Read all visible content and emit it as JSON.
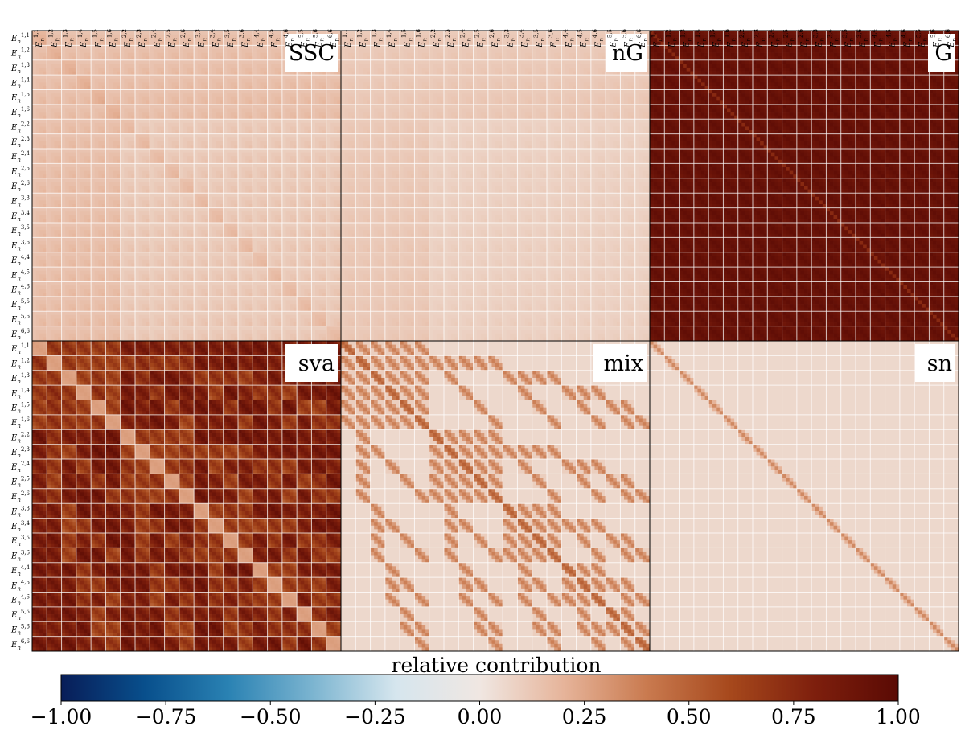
{
  "chart_data": {
    "type": "heatmap",
    "layout": {
      "rows": 2,
      "cols": 3
    },
    "tracers": [
      "E_n^{1,1}",
      "E_n^{1,2}",
      "E_n^{1,3}",
      "E_n^{1,4}",
      "E_n^{1,5}",
      "E_n^{1,6}",
      "E_n^{2,2}",
      "E_n^{2,3}",
      "E_n^{2,4}",
      "E_n^{2,5}",
      "E_n^{2,6}",
      "E_n^{3,3}",
      "E_n^{3,4}",
      "E_n^{3,5}",
      "E_n^{3,6}",
      "E_n^{4,4}",
      "E_n^{4,5}",
      "E_n^{4,6}",
      "E_n^{5,5}",
      "E_n^{5,6}",
      "E_n^{6,6}"
    ],
    "tick_labels": [
      {
        "base": "E",
        "sub": "n",
        "sup": "1,1"
      },
      {
        "base": "E",
        "sub": "n",
        "sup": "1,2"
      },
      {
        "base": "E",
        "sub": "n",
        "sup": "1,3"
      },
      {
        "base": "E",
        "sub": "n",
        "sup": "1,4"
      },
      {
        "base": "E",
        "sub": "n",
        "sup": "1,5"
      },
      {
        "base": "E",
        "sub": "n",
        "sup": "1,6"
      },
      {
        "base": "E",
        "sub": "n",
        "sup": "2,2"
      },
      {
        "base": "E",
        "sub": "n",
        "sup": "2,3"
      },
      {
        "base": "E",
        "sub": "n",
        "sup": "2,4"
      },
      {
        "base": "E",
        "sub": "n",
        "sup": "2,5"
      },
      {
        "base": "E",
        "sub": "n",
        "sup": "2,6"
      },
      {
        "base": "E",
        "sub": "n",
        "sup": "3,3"
      },
      {
        "base": "E",
        "sub": "n",
        "sup": "3,4"
      },
      {
        "base": "E",
        "sub": "n",
        "sup": "3,5"
      },
      {
        "base": "E",
        "sub": "n",
        "sup": "3,6"
      },
      {
        "base": "E",
        "sub": "n",
        "sup": "4,4"
      },
      {
        "base": "E",
        "sub": "n",
        "sup": "4,5"
      },
      {
        "base": "E",
        "sub": "n",
        "sup": "4,6"
      },
      {
        "base": "E",
        "sub": "n",
        "sup": "5,5"
      },
      {
        "base": "E",
        "sub": "n",
        "sup": "5,6"
      },
      {
        "base": "E",
        "sub": "n",
        "sup": "6,6"
      }
    ],
    "bins_per_tracer": 4,
    "panels": [
      {
        "name": "SSC",
        "row": 0,
        "col": 0,
        "pattern": "ssc",
        "typical_value": 0.16,
        "show_xticks": true,
        "show_yticks": true
      },
      {
        "name": "nG",
        "row": 0,
        "col": 1,
        "pattern": "ng",
        "typical_value": 0.12,
        "show_xticks": true,
        "show_yticks": false
      },
      {
        "name": "G",
        "row": 0,
        "col": 2,
        "pattern": "g",
        "typical_value": 0.97,
        "show_xticks": true,
        "show_yticks": false
      },
      {
        "name": "sva",
        "row": 1,
        "col": 0,
        "pattern": "sva",
        "typical_value": 0.75,
        "show_xticks": false,
        "show_yticks": true
      },
      {
        "name": "mix",
        "row": 1,
        "col": 1,
        "pattern": "mix",
        "typical_value": 0.4,
        "show_xticks": false,
        "show_yticks": false
      },
      {
        "name": "sn",
        "row": 1,
        "col": 2,
        "pattern": "sn",
        "typical_value": 0.3,
        "show_xticks": false,
        "show_yticks": false
      }
    ],
    "colorbar": {
      "title": "relative contribution",
      "vmin": -1.0,
      "vmax": 1.0,
      "ticks": [
        "−1.00",
        "−0.75",
        "−0.50",
        "−0.25",
        "0.00",
        "0.25",
        "0.50",
        "0.75",
        "1.00"
      ],
      "orientation": "horizontal",
      "cmap_stops": [
        "#081d58",
        "#084f8c",
        "#2a82b3",
        "#7bb4d0",
        "#d6e6ee",
        "#f0e7e2",
        "#e6b49a",
        "#c97a4f",
        "#a6481c",
        "#7e1f0d",
        "#5a0a04"
      ]
    },
    "grid": "on"
  }
}
